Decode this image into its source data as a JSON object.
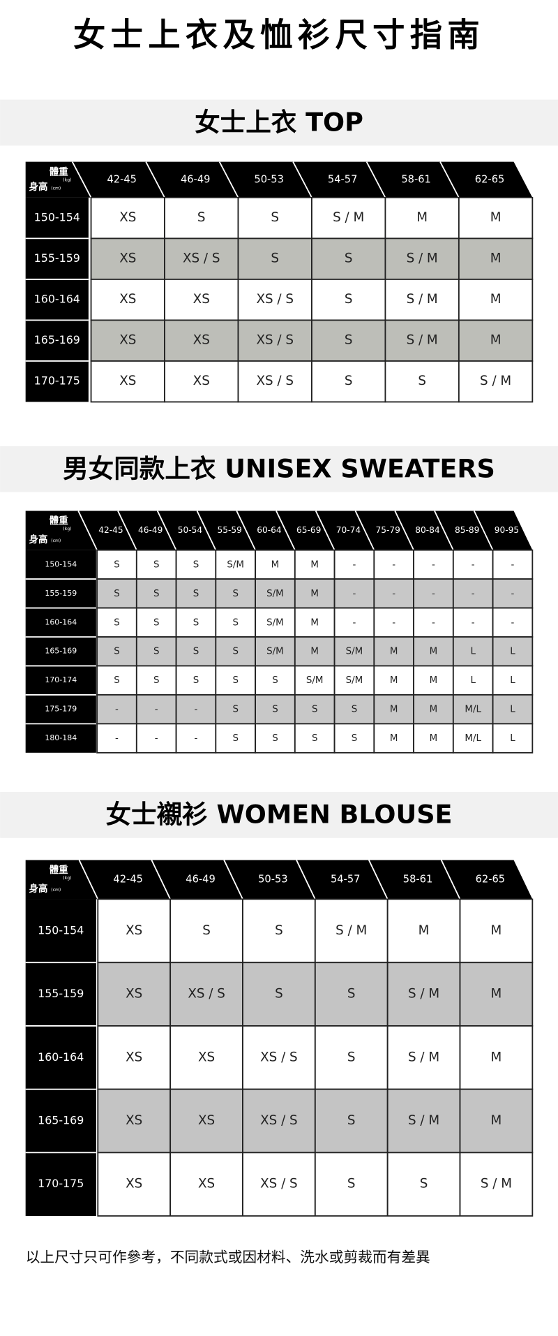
{
  "title": "女士上衣及恤衫尺寸指南",
  "sections": [
    {
      "heading": "女士上衣 TOP",
      "corner": {
        "weight": "體重",
        "weight_unit": "(kg)",
        "height": "身高",
        "height_unit": "(cm)"
      },
      "columns": [
        "42-45",
        "46-49",
        "50-53",
        "54-57",
        "58-61",
        "62-65"
      ],
      "rows": [
        {
          "label": "150-154",
          "cells": [
            "XS",
            "S",
            "S",
            "S / M",
            "M",
            "M"
          ]
        },
        {
          "label": "155-159",
          "cells": [
            "XS",
            "XS / S",
            "S",
            "S",
            "S / M",
            "M"
          ]
        },
        {
          "label": "160-164",
          "cells": [
            "XS",
            "XS",
            "XS / S",
            "S",
            "S / M",
            "M"
          ]
        },
        {
          "label": "165-169",
          "cells": [
            "XS",
            "XS",
            "XS / S",
            "S",
            "S / M",
            "M"
          ]
        },
        {
          "label": "170-175",
          "cells": [
            "XS",
            "XS",
            "XS / S",
            "S",
            "S",
            "S / M"
          ]
        }
      ]
    },
    {
      "heading": "男女同款上衣 UNISEX SWEATERS",
      "corner": {
        "weight": "體重",
        "weight_unit": "(kg)",
        "height": "身高",
        "height_unit": "(cm)"
      },
      "columns": [
        "42-45",
        "46-49",
        "50-54",
        "55-59",
        "60-64",
        "65-69",
        "70-74",
        "75-79",
        "80-84",
        "85-89",
        "90-95"
      ],
      "rows": [
        {
          "label": "150-154",
          "cells": [
            "S",
            "S",
            "S",
            "S/M",
            "M",
            "M",
            "-",
            "-",
            "-",
            "-",
            "-"
          ]
        },
        {
          "label": "155-159",
          "cells": [
            "S",
            "S",
            "S",
            "S",
            "S/M",
            "M",
            "-",
            "-",
            "-",
            "-",
            "-"
          ]
        },
        {
          "label": "160-164",
          "cells": [
            "S",
            "S",
            "S",
            "S",
            "S/M",
            "M",
            "-",
            "-",
            "-",
            "-",
            "-"
          ]
        },
        {
          "label": "165-169",
          "cells": [
            "S",
            "S",
            "S",
            "S",
            "S/M",
            "M",
            "S/M",
            "M",
            "M",
            "L",
            "L"
          ]
        },
        {
          "label": "170-174",
          "cells": [
            "S",
            "S",
            "S",
            "S",
            "S",
            "S/M",
            "S/M",
            "M",
            "M",
            "L",
            "L"
          ]
        },
        {
          "label": "175-179",
          "cells": [
            "-",
            "-",
            "-",
            "S",
            "S",
            "S",
            "S",
            "M",
            "M",
            "M/L",
            "L"
          ]
        },
        {
          "label": "180-184",
          "cells": [
            "-",
            "-",
            "-",
            "S",
            "S",
            "S",
            "S",
            "M",
            "M",
            "M/L",
            "L"
          ]
        }
      ]
    },
    {
      "heading": "女士襯衫 WOMEN BLOUSE",
      "corner": {
        "weight": "體重",
        "weight_unit": "(kg)",
        "height": "身高",
        "height_unit": "(cm)"
      },
      "columns": [
        "42-45",
        "46-49",
        "50-53",
        "54-57",
        "58-61",
        "62-65"
      ],
      "rows": [
        {
          "label": "150-154",
          "cells": [
            "XS",
            "S",
            "S",
            "S / M",
            "M",
            "M"
          ]
        },
        {
          "label": "155-159",
          "cells": [
            "XS",
            "XS / S",
            "S",
            "S",
            "S / M",
            "M"
          ]
        },
        {
          "label": "160-164",
          "cells": [
            "XS",
            "XS",
            "XS / S",
            "S",
            "S / M",
            "M"
          ]
        },
        {
          "label": "165-169",
          "cells": [
            "XS",
            "XS",
            "XS / S",
            "S",
            "S / M",
            "M"
          ]
        },
        {
          "label": "170-175",
          "cells": [
            "XS",
            "XS",
            "XS / S",
            "S",
            "S",
            "S / M"
          ]
        }
      ]
    }
  ],
  "footnote": "以上尺寸只可作參考，不同款式或因材料、洗水或剪裁而有差異"
}
